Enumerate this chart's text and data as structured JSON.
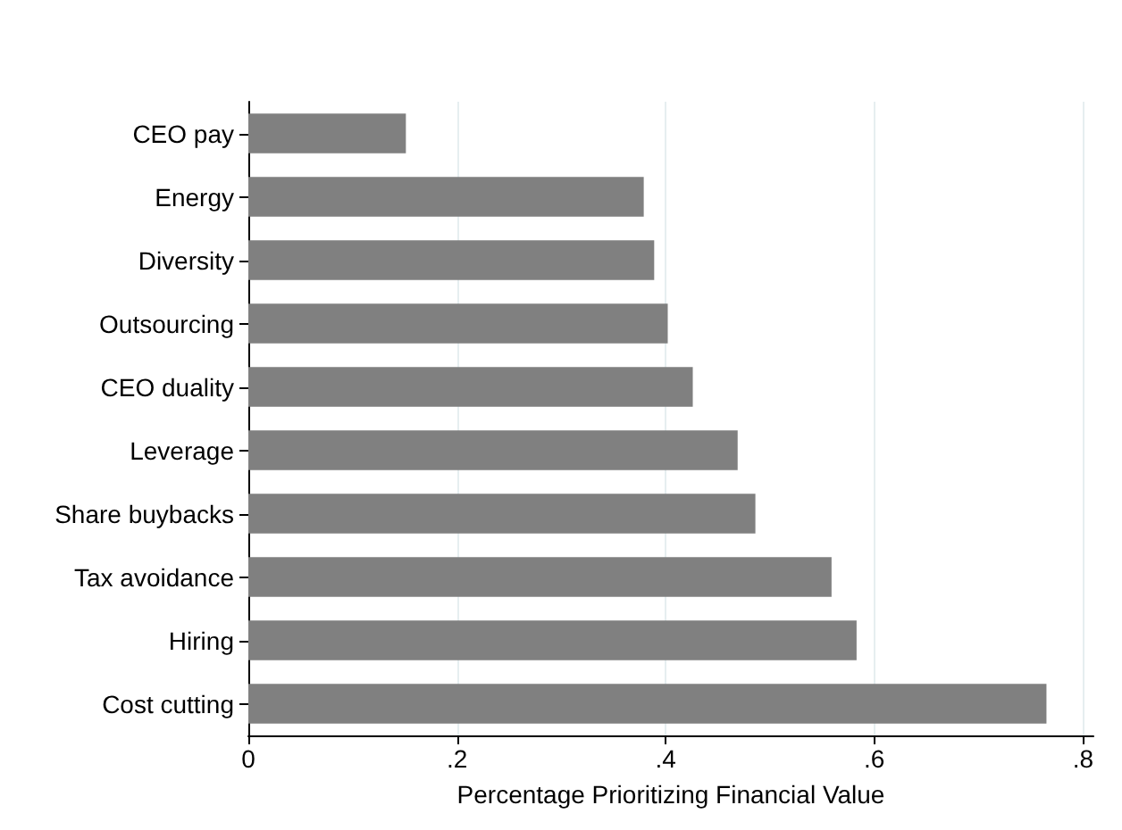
{
  "chart_data": {
    "type": "bar",
    "orientation": "horizontal",
    "xlabel": "Percentage Prioritizing Financial Value",
    "categories": [
      "CEO pay",
      "Energy",
      "Diversity",
      "Outsourcing",
      "CEO duality",
      "Leverage",
      "Share buybacks",
      "Tax avoidance",
      "Hiring",
      "Cost cutting"
    ],
    "values": [
      0.151,
      0.379,
      0.389,
      0.402,
      0.426,
      0.469,
      0.486,
      0.559,
      0.583,
      0.765
    ],
    "color": "#808080",
    "xlim": [
      0,
      0.81
    ],
    "xticks": [
      {
        "value": 0,
        "label": "0"
      },
      {
        "value": 0.2,
        "label": ".2"
      },
      {
        "value": 0.4,
        "label": ".4"
      },
      {
        "value": 0.6,
        "label": ".6"
      },
      {
        "value": 0.8,
        "label": ".8"
      }
    ],
    "grid": "x"
  }
}
